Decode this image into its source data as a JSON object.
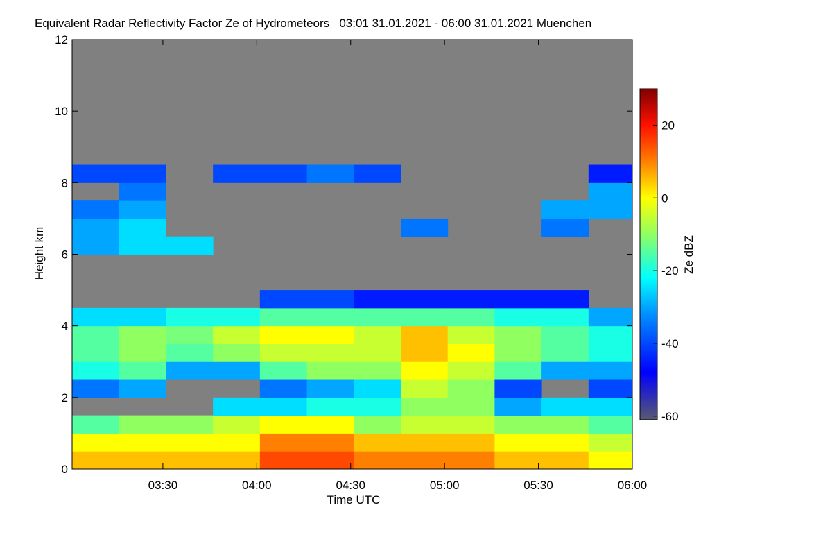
{
  "chart_data": {
    "type": "heatmap",
    "title": "Equivalent Radar Reflectivity Factor Ze of Hydrometeors   03:01 31.01.2021 - 06:00 31.01.2021 Muenchen",
    "x_label": "Time UTC",
    "y_label": "Height km",
    "colorbar_label": "Ze dBZ",
    "xlim": [
      "03:01",
      "06:00"
    ],
    "xticks": [
      "03:30",
      "04:00",
      "04:30",
      "05:00",
      "05:30",
      "06:00"
    ],
    "ylim": [
      0,
      12
    ],
    "yticks": [
      0,
      2,
      4,
      6,
      8,
      10,
      12
    ],
    "x_edges": [
      "03:01",
      "03:16",
      "03:31",
      "03:46",
      "04:01",
      "04:16",
      "04:31",
      "04:46",
      "05:01",
      "05:16",
      "05:31",
      "05:46",
      "06:00"
    ],
    "y_edges": [
      0,
      0.5,
      1,
      1.5,
      2,
      2.5,
      3,
      3.5,
      4,
      4.5,
      5,
      5.5,
      6,
      6.5,
      7,
      7.5,
      8,
      8.5,
      9,
      9.5,
      10,
      10.5,
      11,
      11.5,
      12
    ],
    "z": [
      [
        5,
        0,
        -15,
        null,
        -35,
        -20,
        -15,
        -15,
        -25,
        null,
        null,
        null,
        -30,
        -30,
        -35,
        null,
        -40,
        null,
        null,
        null,
        null,
        null,
        null,
        null
      ],
      [
        5,
        0,
        -10,
        null,
        -30,
        -15,
        -10,
        -10,
        -25,
        null,
        null,
        null,
        -25,
        -25,
        -30,
        -35,
        -40,
        null,
        null,
        null,
        null,
        null,
        null,
        null
      ],
      [
        5,
        0,
        -10,
        null,
        null,
        -30,
        -15,
        -12,
        -20,
        null,
        null,
        null,
        -25,
        null,
        null,
        null,
        null,
        null,
        null,
        null,
        null,
        null,
        null,
        null
      ],
      [
        5,
        0,
        -5,
        -25,
        null,
        -30,
        -10,
        -5,
        -20,
        null,
        null,
        null,
        null,
        null,
        null,
        null,
        -40,
        null,
        null,
        null,
        null,
        null,
        null,
        null
      ],
      [
        15,
        10,
        0,
        -25,
        -35,
        -15,
        -5,
        0,
        -15,
        -40,
        null,
        null,
        null,
        null,
        null,
        null,
        -40,
        null,
        null,
        null,
        null,
        null,
        null,
        null
      ],
      [
        15,
        10,
        0,
        -20,
        -30,
        -10,
        -5,
        0,
        -15,
        -40,
        null,
        null,
        null,
        null,
        null,
        null,
        -35,
        null,
        null,
        null,
        null,
        null,
        null,
        null
      ],
      [
        10,
        5,
        -10,
        -20,
        -25,
        -10,
        -5,
        -5,
        -15,
        -45,
        null,
        null,
        null,
        null,
        null,
        null,
        -40,
        null,
        null,
        null,
        null,
        null,
        null,
        null
      ],
      [
        10,
        5,
        -5,
        -10,
        -5,
        0,
        5,
        5,
        -15,
        -45,
        null,
        null,
        null,
        -35,
        null,
        null,
        null,
        null,
        null,
        null,
        null,
        null,
        null,
        null
      ],
      [
        10,
        5,
        -5,
        -10,
        -10,
        -5,
        0,
        -5,
        -15,
        -45,
        null,
        null,
        null,
        null,
        null,
        null,
        null,
        null,
        null,
        null,
        null,
        null,
        null,
        null
      ],
      [
        5,
        0,
        -10,
        -30,
        -40,
        -15,
        -10,
        -10,
        -20,
        -45,
        null,
        null,
        null,
        null,
        null,
        null,
        null,
        null,
        null,
        null,
        null,
        null,
        null,
        null
      ],
      [
        5,
        0,
        -10,
        -25,
        null,
        -30,
        -15,
        -15,
        -20,
        -45,
        null,
        null,
        null,
        -35,
        -30,
        null,
        null,
        null,
        null,
        null,
        null,
        null,
        null,
        null
      ],
      [
        0,
        -5,
        -15,
        -25,
        -40,
        -30,
        -20,
        -20,
        -30,
        null,
        null,
        null,
        null,
        null,
        -30,
        -30,
        -45,
        null,
        null,
        null,
        null,
        null,
        null,
        null
      ]
    ],
    "missing_color": "#808080",
    "clim": [
      -61,
      30
    ],
    "cticks": [
      -60,
      -40,
      -20,
      0,
      20
    ],
    "colorscale": [
      [
        -61,
        "#5a5a6e"
      ],
      [
        -48,
        "#0000ff"
      ],
      [
        -32,
        "#0090ff"
      ],
      [
        -22,
        "#00ffff"
      ],
      [
        -10,
        "#90ff60"
      ],
      [
        0,
        "#ffff00"
      ],
      [
        10,
        "#ff8000"
      ],
      [
        20,
        "#ff1000"
      ],
      [
        30,
        "#800000"
      ]
    ]
  }
}
